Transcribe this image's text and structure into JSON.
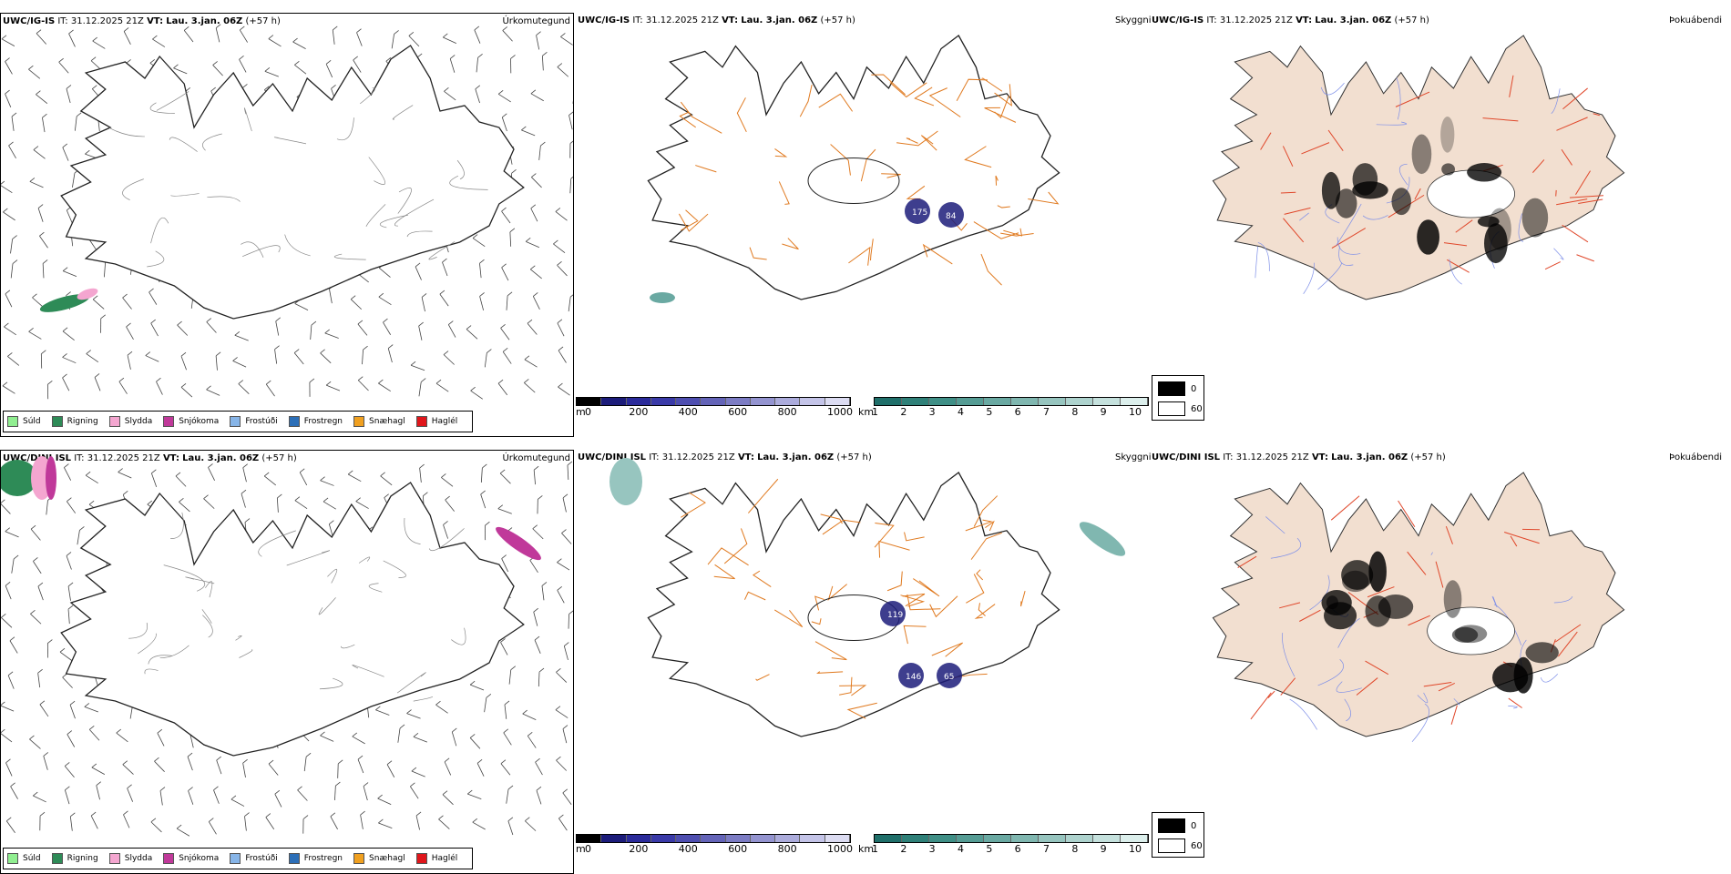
{
  "rows": [
    {
      "model": "UWC/IG-IS",
      "it_label": "IT:",
      "it_value": "31.12.2025 21Z",
      "vt_label": "VT:",
      "vt_value": "Lau. 3.jan. 06Z",
      "offset": "(+57 h)"
    },
    {
      "model": "UWC/DINI ISL",
      "it_label": "IT:",
      "it_value": "31.12.2025 21Z",
      "vt_label": "VT:",
      "vt_value": "Lau. 3.jan. 06Z",
      "offset": "(+57 h)"
    }
  ],
  "panel_titles": {
    "precip": "Úrkomutegund",
    "visibility": "Skyggni",
    "fog": "Þokuábendi"
  },
  "precip_legend": [
    {
      "label": "Súld",
      "color": "#90ee90"
    },
    {
      "label": "Rigning",
      "color": "#2e8b57"
    },
    {
      "label": "Slydda",
      "color": "#f4a6d0"
    },
    {
      "label": "Snjókoma",
      "color": "#c0399a"
    },
    {
      "label": "Frostúði",
      "color": "#87b5e8"
    },
    {
      "label": "Frostregn",
      "color": "#2c6fb8"
    },
    {
      "label": "Snæhagl",
      "color": "#f0a020"
    },
    {
      "label": "Haglél",
      "color": "#e0161b"
    }
  ],
  "ceiling_bar": {
    "unit": "m",
    "ticks": [
      "0",
      "200",
      "400",
      "600",
      "800",
      "1000"
    ],
    "colors": [
      "#000000",
      "#1c1c7a",
      "#2a2a9a",
      "#3a3aa8",
      "#4e4eb0",
      "#6464b8",
      "#7c7cc4",
      "#9494d0",
      "#acacdc",
      "#c4c4e8",
      "#dcdcf2"
    ]
  },
  "visibility_bar": {
    "unit": "km",
    "ticks": [
      "1",
      "2",
      "3",
      "4",
      "5",
      "6",
      "7",
      "8",
      "9",
      "10"
    ],
    "colors": [
      "#1f6f6a",
      "#2f8078",
      "#3f8f86",
      "#559c94",
      "#6aa9a2",
      "#80b7b0",
      "#97c5bf",
      "#aed3ce",
      "#c5e1dd",
      "#dcefec"
    ]
  },
  "fog_legend": [
    {
      "label": "0",
      "color": "#000000"
    },
    {
      "label": "60",
      "color": "#ffffff"
    }
  ],
  "cloud_labels_row1": [
    "175",
    "84"
  ],
  "cloud_labels_row2": [
    "119",
    "146",
    "65"
  ]
}
